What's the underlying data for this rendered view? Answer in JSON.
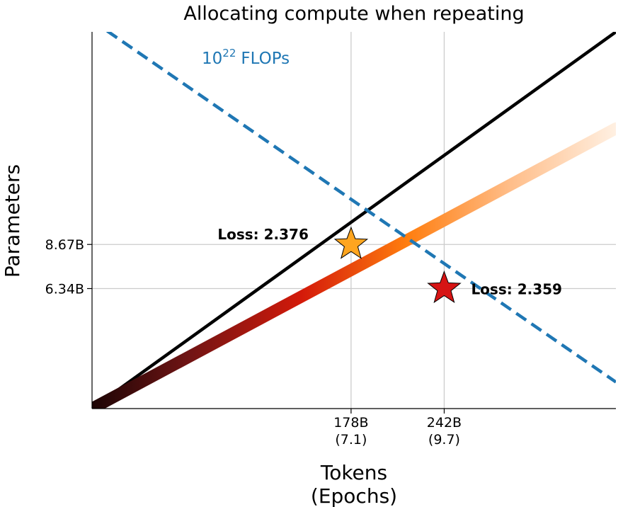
{
  "chart_data": {
    "type": "line",
    "title": "Allocating compute when repeating",
    "xlabel": "Tokens",
    "xlabel_sub": "(Epochs)",
    "ylabel": "Parameters",
    "xlim": [
      0,
      360
    ],
    "ylim": [
      0,
      19.9
    ],
    "xticks": [
      {
        "value": 178,
        "label": "178B",
        "sublabel": "(7.1)"
      },
      {
        "value": 242,
        "label": "242B",
        "sublabel": "(9.7)"
      }
    ],
    "yticks": [
      {
        "value": 8.67,
        "label": "8.67B"
      },
      {
        "value": 6.34,
        "label": "6.34B"
      }
    ],
    "grid": false,
    "series": [
      {
        "style": "solid-black",
        "x": [
          0,
          360
        ],
        "y": [
          0,
          19.9
        ]
      },
      {
        "style": "gradient-dark-red-orange-cream",
        "x": [
          0,
          360
        ],
        "y": [
          0,
          14.8
        ]
      },
      {
        "style": "dashed",
        "color": "#1f77b4",
        "x": [
          0,
          360
        ],
        "y": [
          20.5,
          1.4
        ]
      }
    ],
    "annotations": {
      "flops_base": "10",
      "flops_exp": "22",
      "flops_unit": "FLOPs",
      "points": [
        {
          "x": 178,
          "y": 8.67,
          "label": "Loss: 2.376",
          "marker": "star",
          "color": "#ffa51f"
        },
        {
          "x": 242,
          "y": 6.34,
          "label": "Loss: 2.359",
          "marker": "star",
          "color": "#d61414"
        }
      ]
    }
  }
}
